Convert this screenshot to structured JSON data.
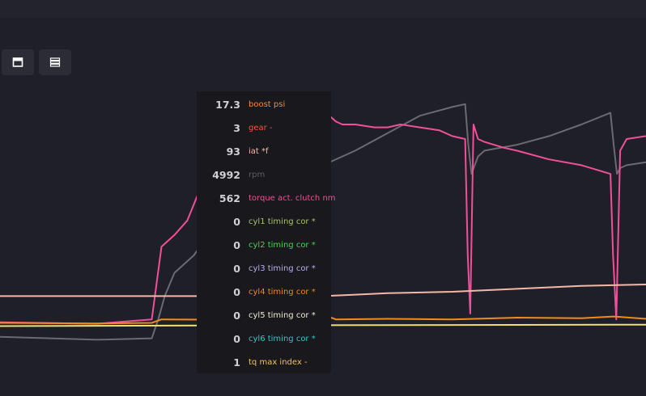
{
  "toolbar": {
    "single_layout_icon": "single-panel-icon",
    "stacked_layout_icon": "stacked-panels-icon"
  },
  "tooltip": {
    "rows": [
      {
        "value": "17.3",
        "label": "boost psi",
        "color": "#f08a3a"
      },
      {
        "value": "3",
        "label": "gear -",
        "color": "#f0583a"
      },
      {
        "value": "93",
        "label": "iat *f",
        "color": "#f2b8a8"
      },
      {
        "value": "4992",
        "label": "rpm",
        "color": "#5d5d66"
      },
      {
        "value": "562",
        "label": "torque act. clutch nm",
        "color": "#f0509a"
      },
      {
        "value": "0",
        "label": "cyl1 timing cor *",
        "color": "#a8c06a"
      },
      {
        "value": "0",
        "label": "cyl2 timing cor *",
        "color": "#3ed84c"
      },
      {
        "value": "0",
        "label": "cyl3 timing cor *",
        "color": "#b8b0f0"
      },
      {
        "value": "0",
        "label": "cyl4 timing cor *",
        "color": "#f08a1a"
      },
      {
        "value": "0",
        "label": "cyl5 timing cor *",
        "color": "#f0ecd0"
      },
      {
        "value": "0",
        "label": "cyl6 timing cor *",
        "color": "#30c8c8"
      },
      {
        "value": "1",
        "label": "tq max index -",
        "color": "#f0c060"
      }
    ]
  },
  "chart_data": {
    "type": "line",
    "grid": false,
    "legend": "hover tooltip",
    "x_range": [
      0,
      100
    ],
    "y_range": [
      0,
      100
    ],
    "series": [
      {
        "name": "rpm",
        "color": "#6a6a72",
        "x": [
          0,
          15,
          23.5,
          24.5,
          25.5,
          27,
          30,
          35,
          40,
          45,
          50,
          55,
          60,
          65,
          70,
          72,
          72.5,
          73,
          74,
          75,
          80,
          85,
          90,
          94.5,
          95,
          95.5,
          96,
          97,
          100
        ],
        "y": [
          12,
          11,
          11.5,
          18,
          26,
          34,
          40,
          56,
          63,
          66,
          71,
          76,
          82,
          88,
          91,
          92,
          78,
          68,
          74,
          76,
          78,
          81,
          85,
          89,
          78,
          68,
          70,
          71,
          72
        ]
      },
      {
        "name": "torque act. clutch nm",
        "color": "#f0509a",
        "x": [
          0,
          15,
          23.5,
          25,
          27,
          29,
          31,
          33,
          35,
          40,
          45,
          50,
          51,
          52,
          53,
          55,
          58,
          60,
          62,
          65,
          68,
          70,
          72,
          72.4,
          72.8,
          73.3,
          74,
          75,
          78,
          80,
          85,
          90,
          94.5,
          94.9,
          95.4,
          96,
          97,
          100
        ],
        "y": [
          17,
          16.5,
          18,
          43,
          47,
          52,
          63,
          71,
          75,
          78,
          80,
          84,
          88,
          86,
          85,
          85,
          84,
          84,
          85,
          84,
          83,
          81,
          80,
          40,
          20,
          85,
          80,
          79,
          77,
          76,
          73,
          71,
          68,
          40,
          18,
          76,
          80,
          81
        ]
      },
      {
        "name": "iat *f",
        "color": "#f2b8a8",
        "x": [
          0,
          50,
          55,
          60,
          70,
          80,
          90,
          100
        ],
        "y": [
          26,
          26,
          26.5,
          27,
          27.5,
          28.5,
          29.5,
          30
        ]
      },
      {
        "name": "boost psi",
        "color": "#f08a1a",
        "x": [
          0,
          15,
          23.5,
          25,
          40,
          51,
          52,
          60,
          70,
          80,
          90,
          95,
          100
        ],
        "y": [
          16.8,
          16.6,
          16.8,
          18,
          17.8,
          18.8,
          18,
          18.2,
          18,
          18.6,
          18.4,
          19,
          18.2
        ]
      },
      {
        "name": "tq max index -",
        "color": "#f0e070",
        "x": [
          0,
          50,
          100
        ],
        "y": [
          15.7,
          16,
          16.2
        ]
      }
    ]
  }
}
